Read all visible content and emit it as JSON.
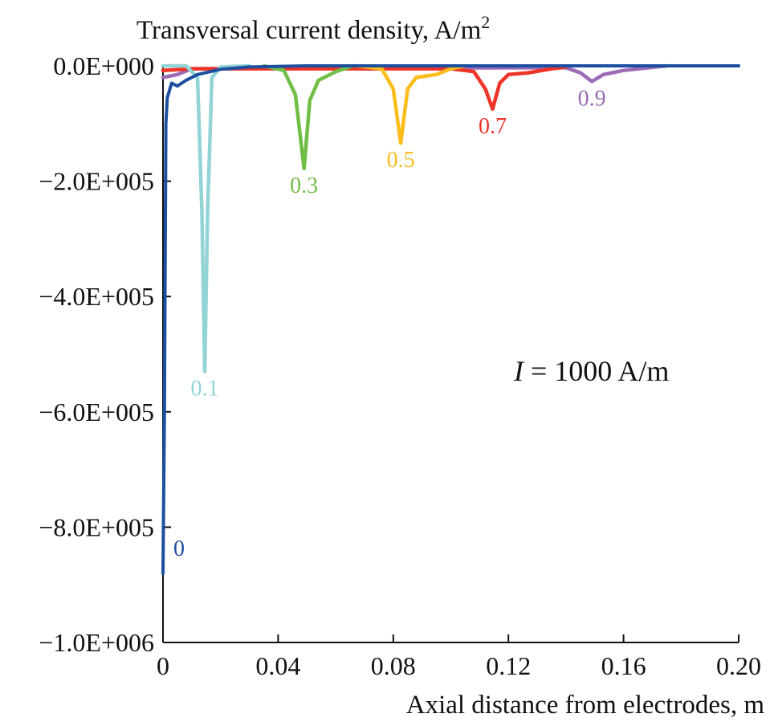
{
  "chart_data": {
    "type": "line",
    "title": "Transversal current density, A/m",
    "title_superscript": "2",
    "xlabel": "Axial distance from electrodes, m",
    "ylabel": "",
    "xlim": [
      0,
      0.2
    ],
    "ylim": [
      -1000000,
      0
    ],
    "grid": false,
    "xticks": [
      0,
      0.04,
      0.08,
      0.12,
      0.16,
      0.2
    ],
    "xtick_labels": [
      "0",
      "0.04",
      "0.08",
      "0.12",
      "0.16",
      "0.20"
    ],
    "yticks": [
      0,
      -200000,
      -400000,
      -600000,
      -800000,
      -1000000
    ],
    "ytick_labels": [
      "0.0E+000",
      "−2.0E+005",
      "−4.0E+005",
      "−6.0E+005",
      "−8.0E+005",
      "−1.0E+006"
    ],
    "annotation": {
      "italic": "I",
      "text": " = 1000 A/m"
    },
    "series": [
      {
        "name": "0.9",
        "color": "#9b6bb5",
        "points": [
          [
            0,
            -20000
          ],
          [
            0.005,
            -15000
          ],
          [
            0.01,
            -5000
          ],
          [
            0.14,
            -3000
          ],
          [
            0.145,
            -12000
          ],
          [
            0.149,
            -27000
          ],
          [
            0.153,
            -15000
          ],
          [
            0.16,
            -8000
          ],
          [
            0.175,
            0
          ]
        ]
      },
      {
        "name": "0.7",
        "color": "#ee3327",
        "points": [
          [
            0,
            -8000
          ],
          [
            0.01,
            -5000
          ],
          [
            0.1,
            -5000
          ],
          [
            0.108,
            -10000
          ],
          [
            0.112,
            -40000
          ],
          [
            0.1145,
            -75000
          ],
          [
            0.117,
            -30000
          ],
          [
            0.12,
            -15000
          ],
          [
            0.127,
            -12000
          ],
          [
            0.135,
            -5000
          ],
          [
            0.14,
            -2000
          ]
        ]
      },
      {
        "name": "0.5",
        "color": "#fbbd1c",
        "points": [
          [
            0.067,
            0
          ],
          [
            0.076,
            -5000
          ],
          [
            0.08,
            -40000
          ],
          [
            0.0826,
            -134000
          ],
          [
            0.085,
            -40000
          ],
          [
            0.088,
            -20000
          ],
          [
            0.095,
            -15000
          ],
          [
            0.1,
            -5000
          ],
          [
            0.105,
            0
          ]
        ]
      },
      {
        "name": "0.3",
        "color": "#6fbe46",
        "points": [
          [
            0.035,
            0
          ],
          [
            0.042,
            -8000
          ],
          [
            0.046,
            -50000
          ],
          [
            0.049,
            -178000
          ],
          [
            0.051,
            -60000
          ],
          [
            0.054,
            -25000
          ],
          [
            0.06,
            -10000
          ],
          [
            0.066,
            0
          ]
        ]
      },
      {
        "name": "0.1",
        "color": "#92d3d6",
        "points": [
          [
            0,
            0
          ],
          [
            0.008,
            0
          ],
          [
            0.012,
            -20000
          ],
          [
            0.0135,
            -250000
          ],
          [
            0.0145,
            -530000
          ],
          [
            0.0155,
            -250000
          ],
          [
            0.017,
            -20000
          ],
          [
            0.02,
            -2000
          ],
          [
            0.03,
            0
          ]
        ]
      },
      {
        "name": "0",
        "color": "#1c4fa0",
        "points": [
          [
            0,
            -880000
          ],
          [
            0.0005,
            -600000
          ],
          [
            0.001,
            -100000
          ],
          [
            0.0015,
            -55000
          ],
          [
            0.003,
            -30000
          ],
          [
            0.005,
            -35000
          ],
          [
            0.008,
            -25000
          ],
          [
            0.012,
            -15000
          ],
          [
            0.02,
            -6000
          ],
          [
            0.03,
            -2000
          ],
          [
            0.05,
            0
          ],
          [
            0.2,
            0
          ]
        ]
      }
    ]
  }
}
